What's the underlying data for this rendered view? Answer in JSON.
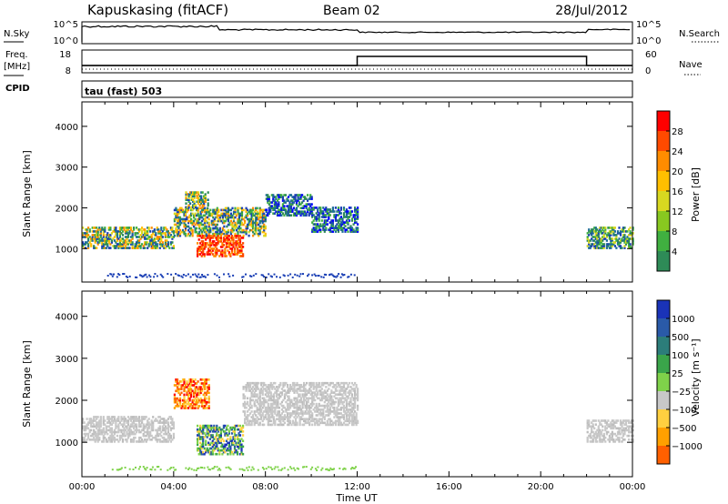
{
  "header": {
    "station": "Kapuskasing (fitACF)",
    "beam": "Beam 02",
    "date": "28/Jul/2012",
    "tau_label": "tau (fast) 503"
  },
  "panels": {
    "nsky": {
      "left_label": "N.Sky",
      "left_ticks": [
        "10^5",
        "10^0"
      ],
      "right_ticks": [
        "10^5",
        "10^0"
      ],
      "right_label": "N.Search"
    },
    "freq": {
      "left_label": "Freq.",
      "left_unit": "[MHz]",
      "left_ticks": [
        "18",
        "8"
      ],
      "right_ticks": [
        "60",
        "0"
      ],
      "right_label": "Nave"
    },
    "cpid_label": "CPID"
  },
  "colorbars": {
    "power": {
      "label": "Power [dB]",
      "ticks": [
        "28",
        "24",
        "20",
        "16",
        "12",
        "8",
        "4"
      ],
      "colors": [
        "#ff0000",
        "#ff4a00",
        "#ff8c00",
        "#ffbf00",
        "#d8d820",
        "#88c820",
        "#40b040",
        "#2e8b57",
        "#1e6e96",
        "#1a3fb5",
        "#0000ff"
      ]
    },
    "velocity": {
      "label": "Velocity [m s⁻¹]",
      "ticks": [
        "1000",
        "500",
        "100",
        "25",
        "−25",
        "−100",
        "−500",
        "−1000"
      ],
      "colors": [
        "#1a33b8",
        "#2a5aa8",
        "#2c7d7a",
        "#3aa54a",
        "#7fd24a",
        "#c8c8c8",
        "#ffd040",
        "#ffa000",
        "#ff6000",
        "#ff0000"
      ]
    }
  },
  "axes": {
    "x_ticks": [
      "00:00",
      "04:00",
      "08:00",
      "12:00",
      "16:00",
      "20:00",
      "00:00"
    ],
    "x_label": "Time UT",
    "y_label": "Slant Range [km]",
    "y_ticks": [
      "1000",
      "2000",
      "3000",
      "4000"
    ]
  },
  "chart_data": {
    "type": "heatmap",
    "x_range_hours": [
      0,
      24
    ],
    "y_range_km": [
      180,
      4600
    ],
    "nave_step": {
      "low": 15,
      "high": 60,
      "switch_hours": [
        12,
        22
      ]
    },
    "power_blobs": [
      {
        "t0": 0.0,
        "t1": 4.0,
        "r0": 1000,
        "r1": 1500,
        "level": "high"
      },
      {
        "t0": 4.0,
        "t1": 8.0,
        "r0": 1300,
        "r1": 2000,
        "level": "high"
      },
      {
        "t0": 5.0,
        "t1": 7.0,
        "r0": 800,
        "r1": 1300,
        "level": "very-high"
      },
      {
        "t0": 4.5,
        "t1": 5.5,
        "r0": 2000,
        "r1": 2400,
        "level": "high"
      },
      {
        "t0": 8.0,
        "t1": 10.0,
        "r0": 1800,
        "r1": 2300,
        "level": "low"
      },
      {
        "t0": 10.0,
        "t1": 12.0,
        "r0": 1400,
        "r1": 2000,
        "level": "low"
      },
      {
        "t0": 22.0,
        "t1": 24.0,
        "r0": 1000,
        "r1": 1500,
        "level": "medium"
      }
    ],
    "velocity_blobs": [
      {
        "t0": 0.0,
        "t1": 4.0,
        "r0": 1000,
        "r1": 1600,
        "v": 0
      },
      {
        "t0": 4.0,
        "t1": 5.5,
        "r0": 1800,
        "r1": 2500,
        "v": -300
      },
      {
        "t0": 5.0,
        "t1": 7.0,
        "r0": 700,
        "r1": 1400,
        "v": 200
      },
      {
        "t0": 7.0,
        "t1": 12.0,
        "r0": 1400,
        "r1": 2400,
        "v": 0
      },
      {
        "t0": 22.0,
        "t1": 24.0,
        "r0": 1000,
        "r1": 1500,
        "v": 0
      }
    ]
  }
}
